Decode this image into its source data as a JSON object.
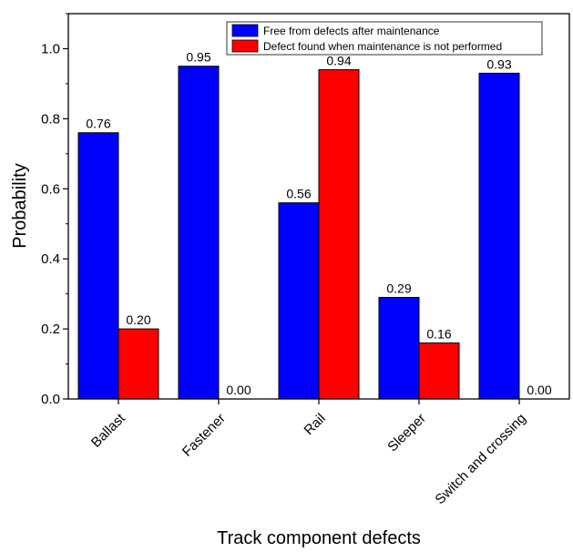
{
  "chart_data": {
    "type": "bar",
    "title": "",
    "xlabel": "Track component defects",
    "ylabel": "Probability",
    "categories": [
      "Ballast",
      "Fastener",
      "Rail",
      "Sleeper",
      "Switch and crossing"
    ],
    "series": [
      {
        "name": "Free from defects after maintenance",
        "color": "#0000ff",
        "values": [
          0.76,
          0.95,
          0.56,
          0.29,
          0.93
        ]
      },
      {
        "name": "Defect found when maintenance is not performed",
        "color": "#ff0000",
        "values": [
          0.2,
          0.0,
          0.94,
          0.16,
          0.0
        ]
      }
    ],
    "ylim": [
      0,
      1.1
    ],
    "yticks": [
      "0.0",
      "0.2",
      "0.4",
      "0.6",
      "0.8",
      "1.0"
    ],
    "legend_position": "top-right",
    "grid": false
  }
}
